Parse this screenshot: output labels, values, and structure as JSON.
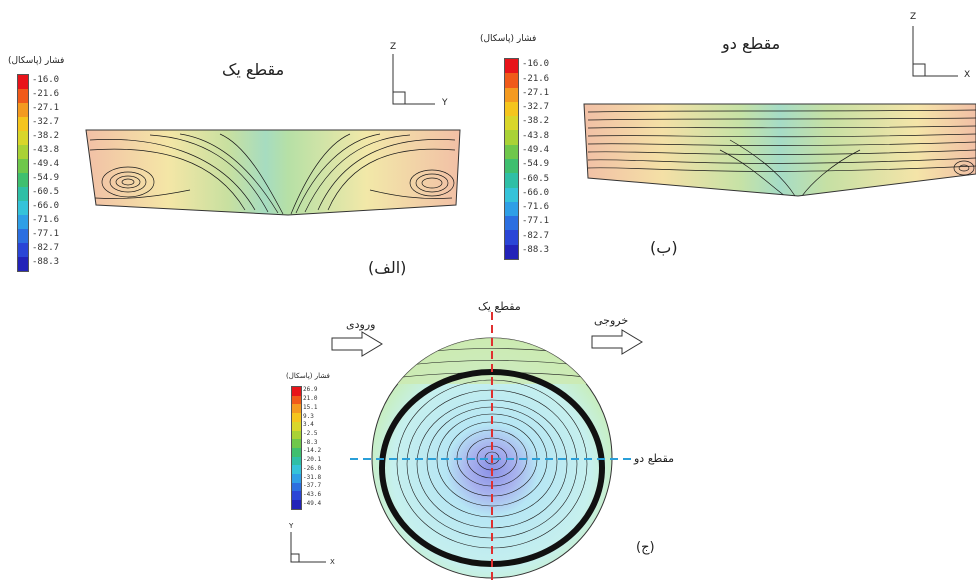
{
  "panel_a": {
    "title": "مقطع یک",
    "caption": "(الف)",
    "legend_title": "فشار (پاسکال)",
    "legend_values": [
      "-16.0",
      "-21.6",
      "-27.1",
      "-32.7",
      "-38.2",
      "-43.8",
      "-49.4",
      "-54.9",
      "-60.5",
      "-66.0",
      "-71.6",
      "-77.1",
      "-82.7",
      "-88.3"
    ],
    "axes": {
      "vertical": "Z",
      "horizontal": "Y"
    }
  },
  "panel_b": {
    "title": "مقطع دو",
    "caption": "(ب)",
    "legend_title": "فشار (پاسکال)",
    "legend_values": [
      "-16.0",
      "-21.6",
      "-27.1",
      "-32.7",
      "-38.2",
      "-43.8",
      "-49.4",
      "-54.9",
      "-60.5",
      "-66.0",
      "-71.6",
      "-77.1",
      "-82.7",
      "-88.3"
    ],
    "axes": {
      "vertical": "Z",
      "horizontal": "X"
    }
  },
  "panel_c": {
    "caption": "(ج)",
    "legend_title": "فشار (پاسکال)",
    "legend_values": [
      "26.9",
      "21.0",
      "15.1",
      "9.3",
      "3.4",
      "-2.5",
      "-8.3",
      "-14.2",
      "-20.1",
      "-26.0",
      "-31.8",
      "-37.7",
      "-43.6",
      "-49.4"
    ],
    "axes": {
      "vertical": "Y",
      "horizontal": "X"
    },
    "inlet_label": "ورودی",
    "outlet_label": "خروجی",
    "section1_label": "مقطع یک",
    "section2_label": "مقطع دو"
  },
  "colors": {
    "scale": [
      "#e8141a",
      "#f05a1a",
      "#f49a20",
      "#f5c51d",
      "#d9d62a",
      "#a9d236",
      "#6fc74b",
      "#3fbf6f",
      "#2fbfa6",
      "#35c3d9",
      "#2f9fe6",
      "#2c6fe0",
      "#2a45d6",
      "#2222b8"
    ],
    "section_one_line": "#e03030",
    "section_two_line": "#2a9fd8"
  }
}
